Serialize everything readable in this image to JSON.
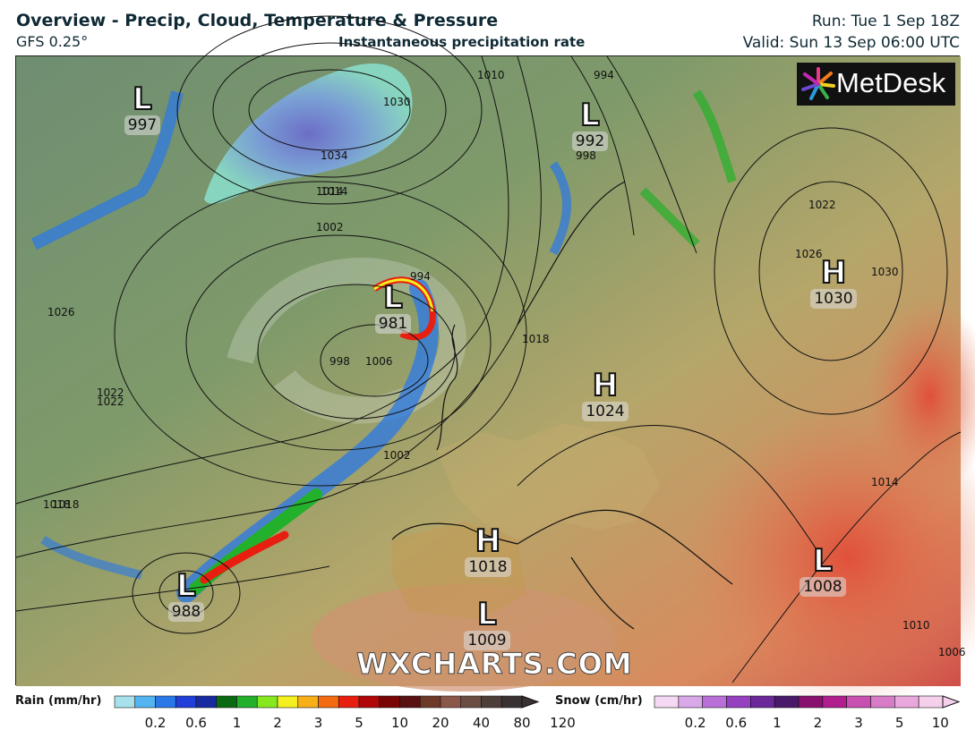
{
  "header": {
    "title": "Overview - Precip, Cloud, Temperature & Pressure",
    "model": "GFS 0.25°",
    "subtitle": "Instantaneous precipitation rate",
    "run": "Run: Tue 1 Sep 18Z",
    "valid": "Valid: Sun 13 Sep 06:00 UTC"
  },
  "logo": {
    "text": "MetDesk",
    "icon": "metdesk-burst-icon"
  },
  "watermark": "WXCHARTS.COM",
  "pressure_systems": [
    {
      "type": "L",
      "value": "997"
    },
    {
      "type": "L",
      "value": "992"
    },
    {
      "type": "H",
      "value": "1030"
    },
    {
      "type": "L",
      "value": "981"
    },
    {
      "type": "H",
      "value": "1024"
    },
    {
      "type": "H",
      "value": "1018"
    },
    {
      "type": "L",
      "value": "988"
    },
    {
      "type": "L",
      "value": "1009"
    },
    {
      "type": "L",
      "value": "1008"
    }
  ],
  "isobar_labels": [
    "1014",
    "1018",
    "1022",
    "1026",
    "1034",
    "1030",
    "1010",
    "994",
    "998",
    "1002",
    "1006",
    "1026",
    "1022",
    "1030",
    "1018",
    "1014",
    "1010",
    "1006",
    "1022",
    "1018",
    "1014",
    "998",
    "994",
    "1002"
  ],
  "legend": {
    "rain": {
      "title": "Rain (mm/hr)",
      "ticks": [
        "0.2",
        "0.6",
        "1",
        "2",
        "3",
        "5",
        "10",
        "20",
        "40",
        "80",
        "120"
      ],
      "colors": [
        "#a8e0ec",
        "#52b4f0",
        "#2a78e8",
        "#1f3fd8",
        "#182aa0",
        "#0a6a12",
        "#23b02a",
        "#86e81e",
        "#f4f020",
        "#f8b018",
        "#f46a10",
        "#e81e10",
        "#b00808",
        "#780404",
        "#581010",
        "#6e3a28",
        "#8a5848",
        "#6a4e44",
        "#4e3e3a",
        "#3a3232"
      ]
    },
    "snow": {
      "title": "Snow (cm/hr)",
      "ticks": [
        "0.2",
        "0.6",
        "1",
        "2",
        "3",
        "5",
        "10"
      ],
      "colors": [
        "#f4d8f4",
        "#d8a8e8",
        "#b870d8",
        "#9440c0",
        "#6a2898",
        "#4a1a6a",
        "#8a1070",
        "#b01e90",
        "#c850b0",
        "#d87cc8",
        "#e8a8dc",
        "#f4d0ec"
      ]
    }
  }
}
